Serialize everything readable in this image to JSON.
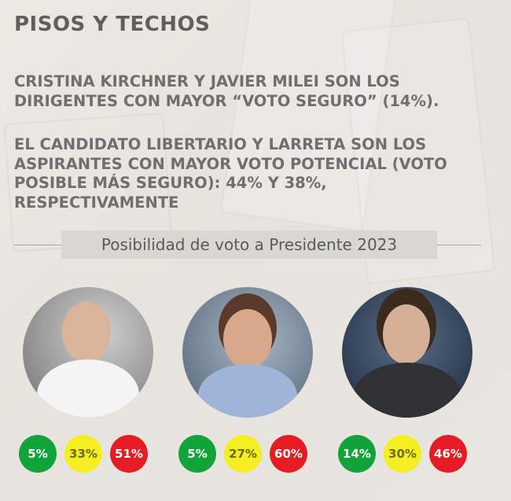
{
  "header": {
    "title": "PISOS Y TECHOS",
    "paragraph1": "CRISTINA KIRCHNER Y JAVIER MILEI SON LOS DIRIGENTES CON MAYOR “VOTO SEGURO” (14%).",
    "paragraph2": "EL CANDIDATO LIBERTARIO Y LARRETA SON LOS ASPIRANTES CON MAYOR VOTO POTENCIAL (VOTO POSIBLE MÁS SEGURO): 44% Y 38%, RESPECTIVAMENTE",
    "subtitle": "Posibilidad de voto a Presidente 2023"
  },
  "colors": {
    "green": "#12a33b",
    "yellow": "#f4ee22",
    "red": "#e51c23"
  },
  "candidates": [
    {
      "photo": "person-photo",
      "values": [
        "5%",
        "33%",
        "51%"
      ]
    },
    {
      "photo": "person-photo",
      "values": [
        "5%",
        "27%",
        "60%"
      ]
    },
    {
      "photo": "person-photo",
      "values": [
        "14%",
        "30%",
        "46%"
      ]
    }
  ]
}
